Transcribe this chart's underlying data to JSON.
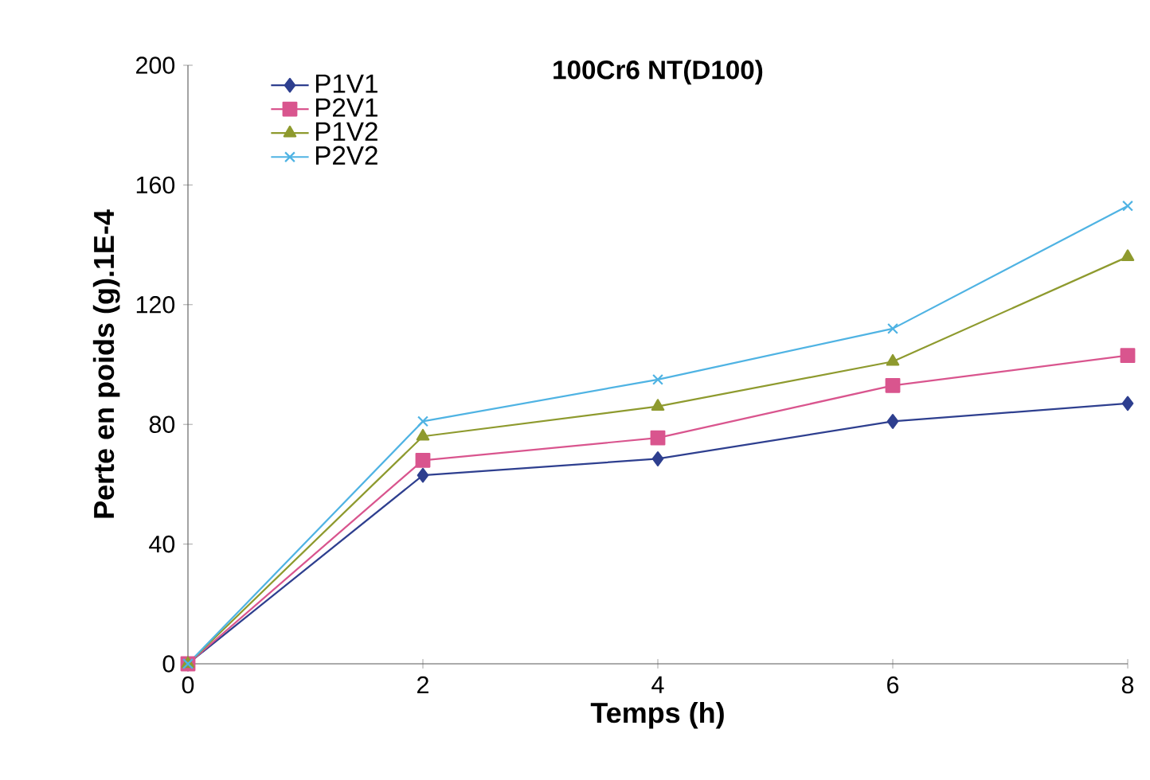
{
  "chart_data": {
    "type": "line",
    "title": "100Cr6 NT(D100)",
    "xlabel": "Temps (h)",
    "ylabel": "Perte en poids (g).1E-4",
    "x": [
      0,
      2,
      4,
      6,
      8
    ],
    "series": [
      {
        "name": "P1V1",
        "color": "#2e3f8f",
        "marker": "diamond",
        "values": [
          0,
          63,
          68.5,
          81,
          87
        ]
      },
      {
        "name": "P2V1",
        "color": "#d9558e",
        "marker": "square",
        "values": [
          0,
          68,
          75.5,
          93,
          103
        ]
      },
      {
        "name": "P1V2",
        "color": "#8e9a2e",
        "marker": "triangle",
        "values": [
          0,
          76,
          86,
          101,
          136
        ]
      },
      {
        "name": "P2V2",
        "color": "#4fb3e3",
        "marker": "cross",
        "values": [
          0,
          81,
          95,
          112,
          153
        ]
      }
    ],
    "xlim": [
      0,
      8
    ],
    "ylim": [
      0,
      200
    ],
    "xticks": [
      0,
      2,
      4,
      6,
      8
    ],
    "yticks": [
      0,
      40,
      80,
      120,
      160,
      200
    ],
    "legend": "top left",
    "grid": false,
    "line_style": "solid"
  }
}
